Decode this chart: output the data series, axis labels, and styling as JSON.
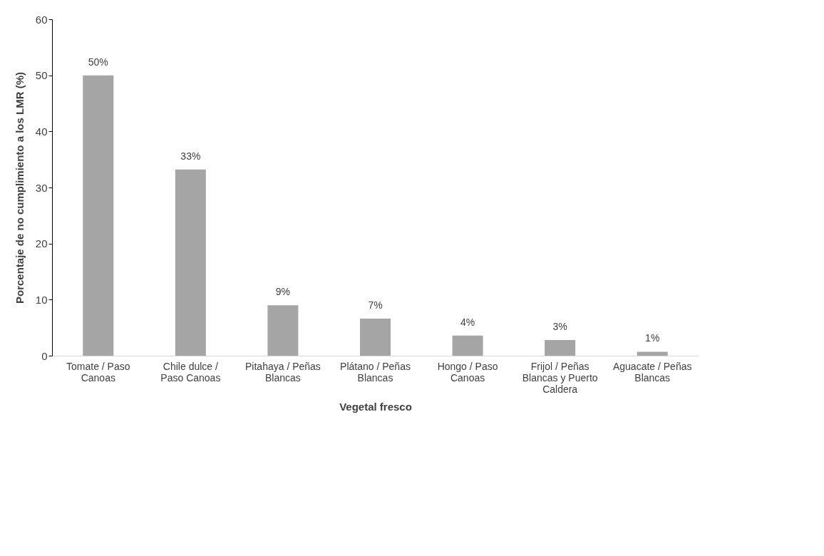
{
  "chart_data": {
    "type": "bar",
    "categories": [
      "Tomate / Paso Canoas",
      "Chile dulce / Paso Canoas",
      "Pitahaya / Peñas Blancas",
      "Plátano / Peñas Blancas",
      "Hongo  / Paso Canoas",
      "Frijol / Peñas Blancas y Puerto Caldera",
      "Aguacate / Peñas Blancas"
    ],
    "values": [
      50,
      33.2,
      9.0,
      6.6,
      3.6,
      2.8,
      0.7
    ],
    "value_labels": [
      "50%",
      "33%",
      "9%",
      "7%",
      "4%",
      "3%",
      "1%"
    ],
    "color": "#a5a5a5",
    "xlabel": "Vegetal fresco",
    "ylabel": "Porcentaje de no cumplimiento a los LMR (%)",
    "ylim": [
      0,
      60
    ],
    "yticks": [
      0,
      10,
      20,
      30,
      40,
      50,
      60
    ],
    "grid": false
  }
}
